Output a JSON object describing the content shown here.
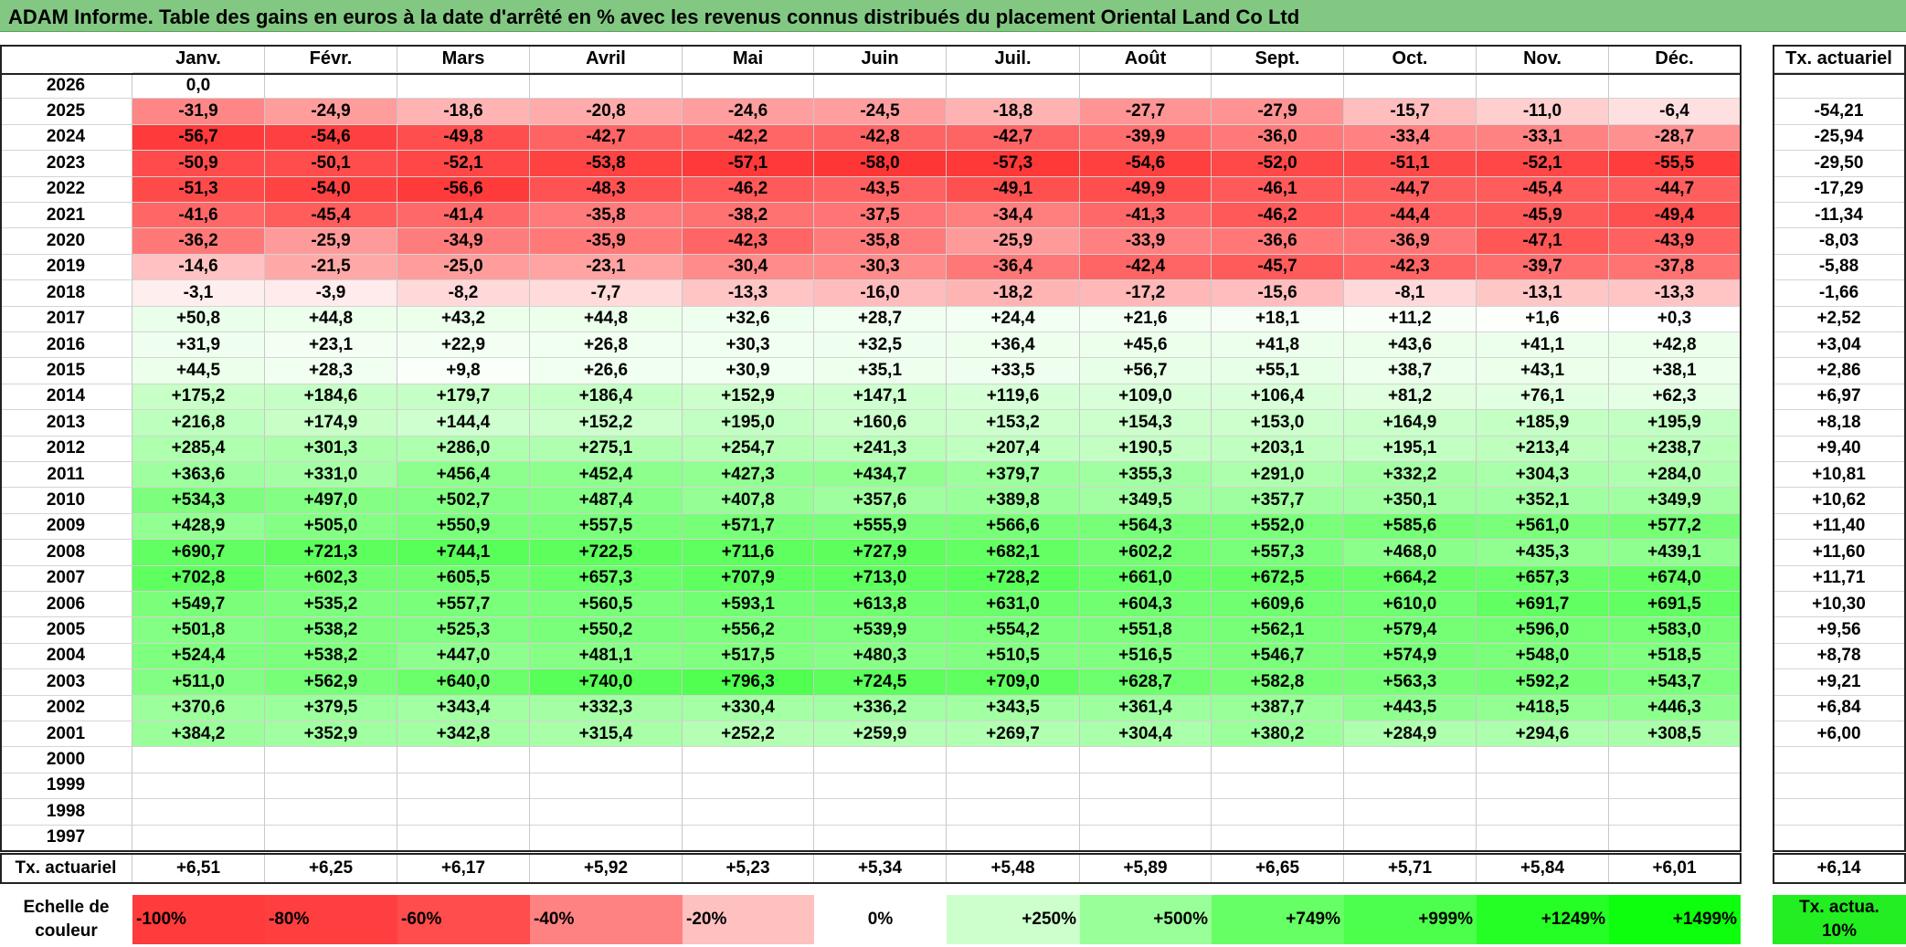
{
  "title": "ADAM Informe. Table des gains en euros à la date d'arrêté en % avec les revenus connus distribués du placement Oriental Land Co Ltd",
  "chart_data": {
    "type": "table",
    "columns": [
      "Janv.",
      "Févr.",
      "Mars",
      "Avril",
      "Mai",
      "Juin",
      "Juil.",
      "Août",
      "Sept.",
      "Oct.",
      "Nov.",
      "Déc."
    ],
    "rate_column_label": "Tx. actuariel",
    "rows": [
      {
        "year": "2026",
        "values": [
          "0,0",
          "",
          "",
          "",
          "",
          "",
          "",
          "",
          "",
          "",
          "",
          ""
        ],
        "rate": ""
      },
      {
        "year": "2025",
        "values": [
          "-31,9",
          "-24,9",
          "-18,6",
          "-20,8",
          "-24,6",
          "-24,5",
          "-18,8",
          "-27,7",
          "-27,9",
          "-15,7",
          "-11,0",
          "-6,4"
        ],
        "rate": "-54,21"
      },
      {
        "year": "2024",
        "values": [
          "-56,7",
          "-54,6",
          "-49,8",
          "-42,7",
          "-42,2",
          "-42,8",
          "-42,7",
          "-39,9",
          "-36,0",
          "-33,4",
          "-33,1",
          "-28,7"
        ],
        "rate": "-25,94"
      },
      {
        "year": "2023",
        "values": [
          "-50,9",
          "-50,1",
          "-52,1",
          "-53,8",
          "-57,1",
          "-58,0",
          "-57,3",
          "-54,6",
          "-52,0",
          "-51,1",
          "-52,1",
          "-55,5"
        ],
        "rate": "-29,50"
      },
      {
        "year": "2022",
        "values": [
          "-51,3",
          "-54,0",
          "-56,6",
          "-48,3",
          "-46,2",
          "-43,5",
          "-49,1",
          "-49,9",
          "-46,1",
          "-44,7",
          "-45,4",
          "-44,7"
        ],
        "rate": "-17,29"
      },
      {
        "year": "2021",
        "values": [
          "-41,6",
          "-45,4",
          "-41,4",
          "-35,8",
          "-38,2",
          "-37,5",
          "-34,4",
          "-41,3",
          "-46,2",
          "-44,4",
          "-45,9",
          "-49,4"
        ],
        "rate": "-11,34"
      },
      {
        "year": "2020",
        "values": [
          "-36,2",
          "-25,9",
          "-34,9",
          "-35,9",
          "-42,3",
          "-35,8",
          "-25,9",
          "-33,9",
          "-36,6",
          "-36,9",
          "-47,1",
          "-43,9"
        ],
        "rate": "-8,03"
      },
      {
        "year": "2019",
        "values": [
          "-14,6",
          "-21,5",
          "-25,0",
          "-23,1",
          "-30,4",
          "-30,3",
          "-36,4",
          "-42,4",
          "-45,7",
          "-42,3",
          "-39,7",
          "-37,8"
        ],
        "rate": "-5,88"
      },
      {
        "year": "2018",
        "values": [
          "-3,1",
          "-3,9",
          "-8,2",
          "-7,7",
          "-13,3",
          "-16,0",
          "-18,2",
          "-17,2",
          "-15,6",
          "-8,1",
          "-13,1",
          "-13,3"
        ],
        "rate": "-1,66"
      },
      {
        "year": "2017",
        "values": [
          "+50,8",
          "+44,8",
          "+43,2",
          "+44,8",
          "+32,6",
          "+28,7",
          "+24,4",
          "+21,6",
          "+18,1",
          "+11,2",
          "+1,6",
          "+0,3"
        ],
        "rate": "+2,52"
      },
      {
        "year": "2016",
        "values": [
          "+31,9",
          "+23,1",
          "+22,9",
          "+26,8",
          "+30,3",
          "+32,5",
          "+36,4",
          "+45,6",
          "+41,8",
          "+43,6",
          "+41,1",
          "+42,8"
        ],
        "rate": "+3,04"
      },
      {
        "year": "2015",
        "values": [
          "+44,5",
          "+28,3",
          "+9,8",
          "+26,6",
          "+30,9",
          "+35,1",
          "+33,5",
          "+56,7",
          "+55,1",
          "+38,7",
          "+43,1",
          "+38,1"
        ],
        "rate": "+2,86"
      },
      {
        "year": "2014",
        "values": [
          "+175,2",
          "+184,6",
          "+179,7",
          "+186,4",
          "+152,9",
          "+147,1",
          "+119,6",
          "+109,0",
          "+106,4",
          "+81,2",
          "+76,1",
          "+62,3"
        ],
        "rate": "+6,97"
      },
      {
        "year": "2013",
        "values": [
          "+216,8",
          "+174,9",
          "+144,4",
          "+152,2",
          "+195,0",
          "+160,6",
          "+153,2",
          "+154,3",
          "+153,0",
          "+164,9",
          "+185,9",
          "+195,9"
        ],
        "rate": "+8,18"
      },
      {
        "year": "2012",
        "values": [
          "+285,4",
          "+301,3",
          "+286,0",
          "+275,1",
          "+254,7",
          "+241,3",
          "+207,4",
          "+190,5",
          "+203,1",
          "+195,1",
          "+213,4",
          "+238,7"
        ],
        "rate": "+9,40"
      },
      {
        "year": "2011",
        "values": [
          "+363,6",
          "+331,0",
          "+456,4",
          "+452,4",
          "+427,3",
          "+434,7",
          "+379,7",
          "+355,3",
          "+291,0",
          "+332,2",
          "+304,3",
          "+284,0"
        ],
        "rate": "+10,81"
      },
      {
        "year": "2010",
        "values": [
          "+534,3",
          "+497,0",
          "+502,7",
          "+487,4",
          "+407,8",
          "+357,6",
          "+389,8",
          "+349,5",
          "+357,7",
          "+350,1",
          "+352,1",
          "+349,9"
        ],
        "rate": "+10,62"
      },
      {
        "year": "2009",
        "values": [
          "+428,9",
          "+505,0",
          "+550,9",
          "+557,5",
          "+571,7",
          "+555,9",
          "+566,6",
          "+564,3",
          "+552,0",
          "+585,6",
          "+561,0",
          "+577,2"
        ],
        "rate": "+11,40"
      },
      {
        "year": "2008",
        "values": [
          "+690,7",
          "+721,3",
          "+744,1",
          "+722,5",
          "+711,6",
          "+727,9",
          "+682,1",
          "+602,2",
          "+557,3",
          "+468,0",
          "+435,3",
          "+439,1"
        ],
        "rate": "+11,60"
      },
      {
        "year": "2007",
        "values": [
          "+702,8",
          "+602,3",
          "+605,5",
          "+657,3",
          "+707,9",
          "+713,0",
          "+728,2",
          "+661,0",
          "+672,5",
          "+664,2",
          "+657,3",
          "+674,0"
        ],
        "rate": "+11,71"
      },
      {
        "year": "2006",
        "values": [
          "+549,7",
          "+535,2",
          "+557,7",
          "+560,5",
          "+593,1",
          "+613,8",
          "+631,0",
          "+604,3",
          "+609,6",
          "+610,0",
          "+691,7",
          "+691,5"
        ],
        "rate": "+10,30"
      },
      {
        "year": "2005",
        "values": [
          "+501,8",
          "+538,2",
          "+525,3",
          "+550,2",
          "+556,2",
          "+539,9",
          "+554,2",
          "+551,8",
          "+562,1",
          "+579,4",
          "+596,0",
          "+583,0"
        ],
        "rate": "+9,56"
      },
      {
        "year": "2004",
        "values": [
          "+524,4",
          "+538,2",
          "+447,0",
          "+481,1",
          "+517,5",
          "+480,3",
          "+510,5",
          "+516,5",
          "+546,7",
          "+574,9",
          "+548,0",
          "+518,5"
        ],
        "rate": "+8,78"
      },
      {
        "year": "2003",
        "values": [
          "+511,0",
          "+562,9",
          "+640,0",
          "+740,0",
          "+796,3",
          "+724,5",
          "+709,0",
          "+628,7",
          "+582,8",
          "+563,3",
          "+592,2",
          "+543,7"
        ],
        "rate": "+9,21"
      },
      {
        "year": "2002",
        "values": [
          "+370,6",
          "+379,5",
          "+343,4",
          "+332,3",
          "+330,4",
          "+336,2",
          "+343,5",
          "+361,4",
          "+387,7",
          "+443,5",
          "+418,5",
          "+446,3"
        ],
        "rate": "+6,84"
      },
      {
        "year": "2001",
        "values": [
          "+384,2",
          "+352,9",
          "+342,8",
          "+315,4",
          "+252,2",
          "+259,9",
          "+269,7",
          "+304,4",
          "+380,2",
          "+284,9",
          "+294,6",
          "+308,5"
        ],
        "rate": "+6,00"
      },
      {
        "year": "2000",
        "values": [
          "",
          "",
          "",
          "",
          "",
          "",
          "",
          "",
          "",
          "",
          "",
          ""
        ],
        "rate": ""
      },
      {
        "year": "1999",
        "values": [
          "",
          "",
          "",
          "",
          "",
          "",
          "",
          "",
          "",
          "",
          "",
          ""
        ],
        "rate": ""
      },
      {
        "year": "1998",
        "values": [
          "",
          "",
          "",
          "",
          "",
          "",
          "",
          "",
          "",
          "",
          "",
          ""
        ],
        "rate": ""
      },
      {
        "year": "1997",
        "values": [
          "",
          "",
          "",
          "",
          "",
          "",
          "",
          "",
          "",
          "",
          "",
          ""
        ],
        "rate": ""
      }
    ],
    "summary_row": {
      "label": "Tx. actuariel",
      "values": [
        "+6,51",
        "+6,25",
        "+6,17",
        "+5,92",
        "+5,23",
        "+5,34",
        "+5,48",
        "+5,89",
        "+6,65",
        "+5,71",
        "+5,84",
        "+6,01"
      ],
      "overall": "+6,14"
    },
    "color_scale": {
      "label": "Echelle de couleur",
      "stops": [
        {
          "label": "-100%",
          "color": "#ff3b3b"
        },
        {
          "label": "-80%",
          "color": "#ff3f3f"
        },
        {
          "label": "-60%",
          "color": "#ff4c4c"
        },
        {
          "label": "-40%",
          "color": "#ff8282"
        },
        {
          "label": "-20%",
          "color": "#ffc0c0"
        },
        {
          "label": "0%",
          "color": "#ffffff"
        },
        {
          "label": "+250%",
          "color": "#ccffcc"
        },
        {
          "label": "+500%",
          "color": "#99ff99"
        },
        {
          "label": "+749%",
          "color": "#66ff66"
        },
        {
          "label": "+999%",
          "color": "#4cff4c"
        },
        {
          "label": "+1249%",
          "color": "#26ff26"
        },
        {
          "label": "+1499%",
          "color": "#0dff0d"
        }
      ],
      "rate_label": "Tx. actua. 10%",
      "rate_color": "#22ee22"
    }
  },
  "colors": {
    "title_bar": "#82c882",
    "negative_max": "#ff3030",
    "positive_max": "#3cff3c"
  }
}
